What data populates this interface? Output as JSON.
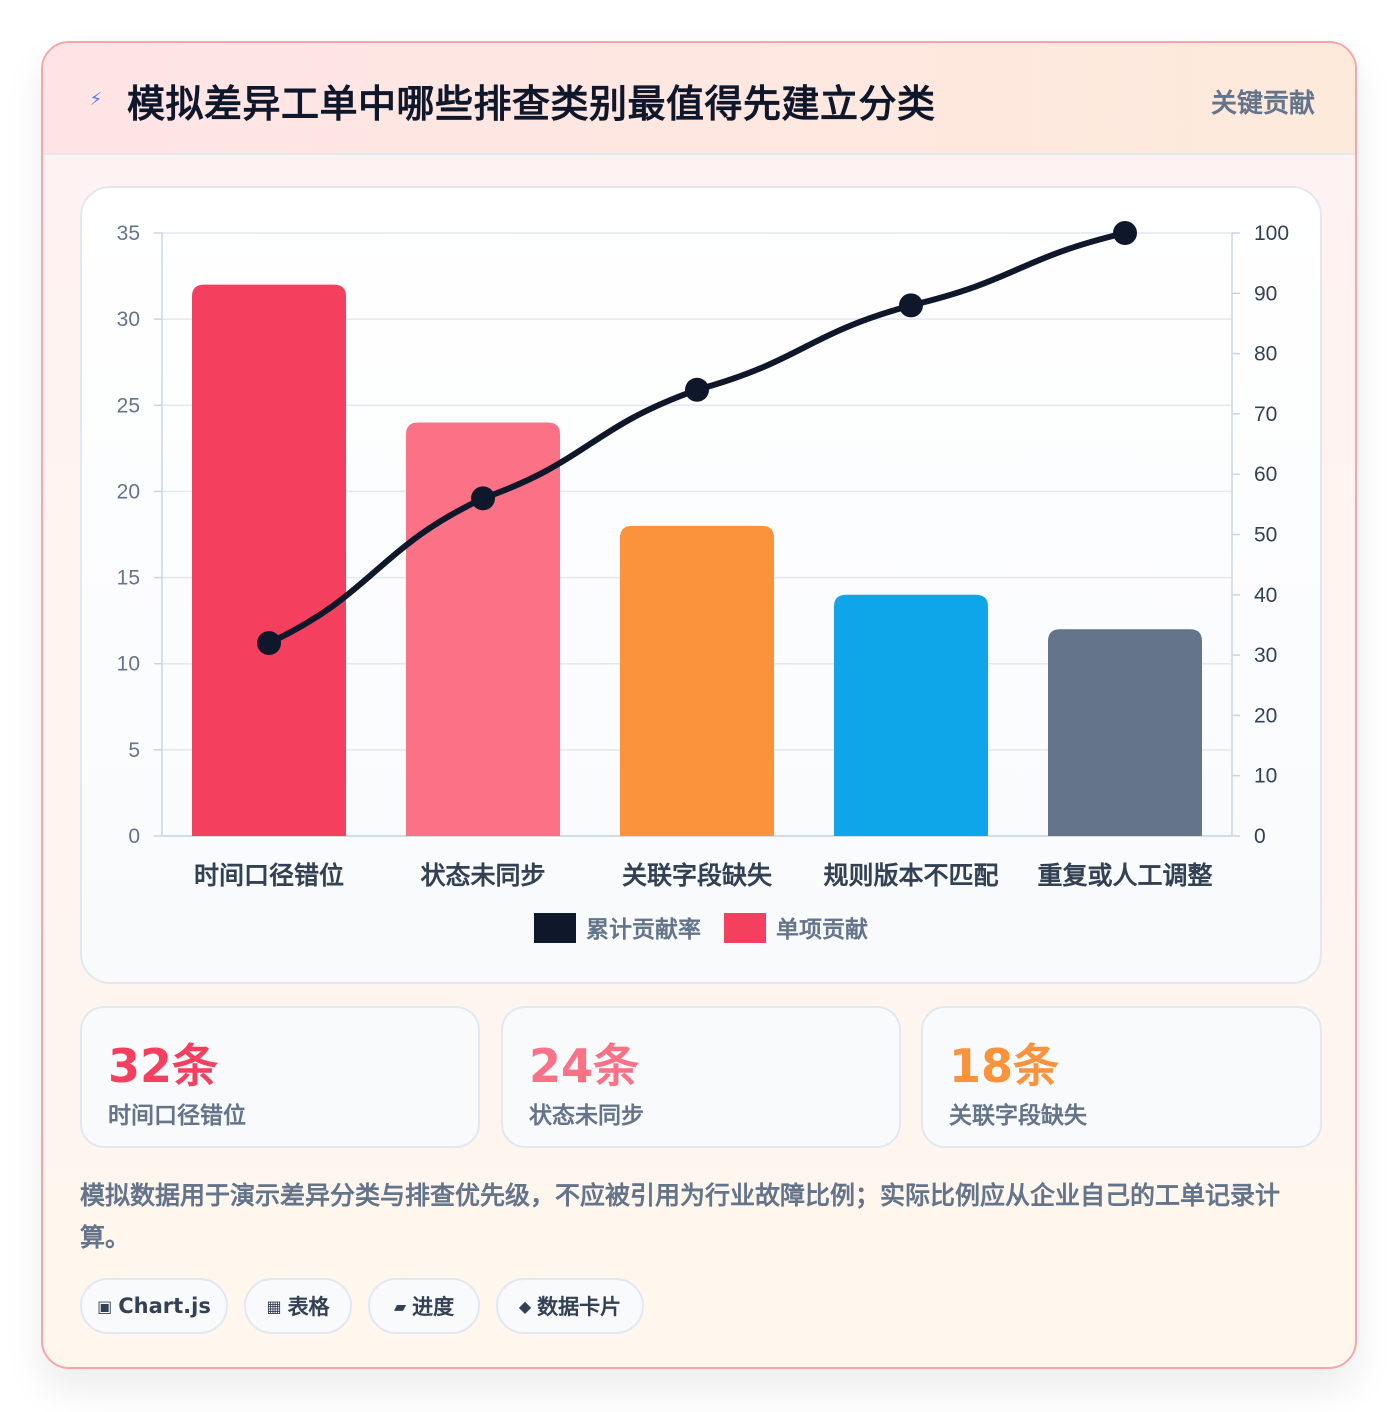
{
  "header": {
    "title": "模拟差异工单中哪些排查类别最值得先建立分类",
    "tag": "关键贡献",
    "icon": "lightning-icon"
  },
  "chart_data": {
    "type": "bar",
    "categories": [
      "时间口径错位",
      "状态未同步",
      "关联字段缺失",
      "规则版本不匹配",
      "重复或人工调整"
    ],
    "series": [
      {
        "name": "单项贡献",
        "type": "bar",
        "axis": "left",
        "values": [
          32,
          24,
          18,
          14,
          12
        ],
        "colors": [
          "#f43f5e",
          "#fb7185",
          "#fb923c",
          "#0ea5e9",
          "#64748b"
        ]
      },
      {
        "name": "累计贡献率",
        "type": "line",
        "axis": "right",
        "values": [
          32,
          56,
          74,
          88,
          100
        ],
        "color": "#0f172a"
      }
    ],
    "y_left": {
      "min": 0,
      "max": 35,
      "ticks": [
        0,
        5,
        10,
        15,
        20,
        25,
        30,
        35
      ]
    },
    "y_right": {
      "min": 0,
      "max": 100,
      "ticks": [
        0,
        10,
        20,
        30,
        40,
        50,
        60,
        70,
        80,
        90,
        100
      ]
    },
    "legend": [
      {
        "label": "累计贡献率",
        "color": "#0f172a"
      },
      {
        "label": "单项贡献",
        "color": "#f43f5e"
      }
    ],
    "legend_position": "bottom",
    "grid": true
  },
  "stats": [
    {
      "value": "32条",
      "label": "时间口径错位",
      "color": "#f43f5e"
    },
    {
      "value": "24条",
      "label": "状态未同步",
      "color": "#fb7185"
    },
    {
      "value": "18条",
      "label": "关联字段缺失",
      "color": "#fb923c"
    }
  ],
  "note": "模拟数据用于演示差异分类与排查优先级，不应被引用为行业故障比例；实际比例应从企业自己的工单记录计算。",
  "chips": [
    {
      "icon": "▣",
      "icon_name": "chart-icon",
      "label": "Chart.js"
    },
    {
      "icon": "▦",
      "icon_name": "table-icon",
      "label": "表格"
    },
    {
      "icon": "▰",
      "icon_name": "progress-icon",
      "label": "进度"
    },
    {
      "icon": "◆",
      "icon_name": "diamond-icon",
      "label": "数据卡片"
    }
  ]
}
